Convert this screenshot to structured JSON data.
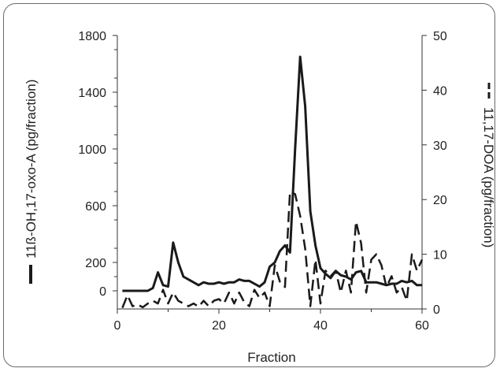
{
  "chart_data": {
    "type": "line",
    "xlabel": "Fraction",
    "xlim": [
      0,
      60
    ],
    "x_ticks": [
      0,
      20,
      40,
      60
    ],
    "y_left": {
      "label": "11ß-OH,17-oxo-A (pg/fraction)",
      "ylim": [
        -100,
        1800
      ],
      "ticks": [
        0,
        200,
        600,
        1000,
        1400,
        1800
      ]
    },
    "y_right": {
      "label": "11,17-DOA (pg/fraction)",
      "ylim": [
        0,
        50
      ],
      "ticks": [
        0,
        10,
        20,
        30,
        40,
        50
      ]
    },
    "series": [
      {
        "name": "11ß-OH,17-oxo-A (pg/fraction)",
        "axis": "left",
        "style": "solid",
        "color": "#1a1a1a",
        "x": [
          1,
          2,
          3,
          4,
          5,
          6,
          7,
          8,
          9,
          10,
          11,
          12,
          13,
          14,
          15,
          16,
          17,
          18,
          19,
          20,
          21,
          22,
          23,
          24,
          25,
          26,
          27,
          28,
          29,
          30,
          31,
          32,
          33,
          34,
          35,
          36,
          37,
          38,
          39,
          40,
          41,
          42,
          43,
          44,
          45,
          46,
          47,
          48,
          49,
          50,
          51,
          52,
          53,
          54,
          55,
          56,
          57,
          58,
          59,
          60
        ],
        "values": [
          0,
          0,
          0,
          0,
          0,
          0,
          20,
          130,
          40,
          30,
          340,
          200,
          100,
          80,
          60,
          40,
          60,
          50,
          50,
          60,
          50,
          60,
          60,
          80,
          70,
          70,
          50,
          30,
          60,
          170,
          200,
          280,
          320,
          270,
          1000,
          1650,
          1300,
          560,
          320,
          160,
          120,
          90,
          140,
          110,
          100,
          80,
          130,
          140,
          60,
          60,
          60,
          50,
          40,
          50,
          50,
          70,
          60,
          70,
          40,
          40
        ]
      },
      {
        "name": "11,17-DOA (pg/fraction)",
        "axis": "right",
        "style": "dashed",
        "color": "#1a1a1a",
        "x": [
          1,
          2,
          3,
          4,
          5,
          6,
          7,
          8,
          9,
          10,
          11,
          12,
          13,
          14,
          15,
          16,
          17,
          18,
          19,
          20,
          21,
          22,
          23,
          24,
          25,
          26,
          27,
          28,
          29,
          30,
          31,
          32,
          33,
          34,
          35,
          36,
          37,
          38,
          39,
          40,
          41,
          42,
          43,
          44,
          45,
          46,
          47,
          48,
          49,
          50,
          51,
          52,
          53,
          54,
          55,
          56,
          57,
          58,
          59,
          60
        ],
        "values": [
          0.2,
          2.5,
          0.5,
          0.8,
          0.3,
          1.0,
          1.5,
          1.0,
          3.5,
          1.0,
          3.0,
          1.5,
          1.0,
          0.5,
          1.0,
          0.4,
          1.5,
          0.5,
          1.5,
          1.8,
          1.0,
          3.0,
          1.0,
          3.0,
          1.2,
          0.5,
          3.5,
          2.0,
          3.0,
          0.5,
          8.0,
          5.0,
          4.0,
          21.5,
          21.0,
          17.0,
          11.0,
          0.5,
          9.0,
          1.0,
          7.0,
          6.0,
          7.0,
          3.0,
          7.0,
          3.0,
          16.0,
          12.0,
          3.0,
          9.0,
          10.0,
          8.0,
          4.0,
          6.0,
          3.0,
          4.0,
          1.5,
          10.0,
          7.0,
          9.0
        ]
      }
    ]
  }
}
